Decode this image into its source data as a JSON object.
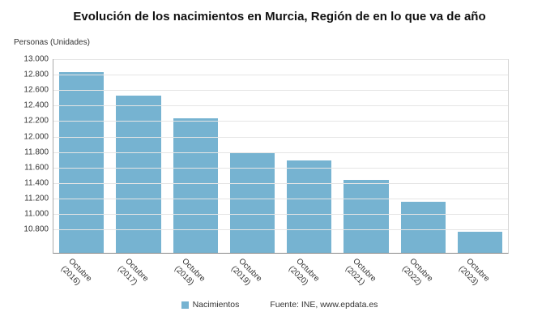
{
  "title": "Evolución de los nacimientos en Murcia, Región de en lo que va de año",
  "y_axis_unit": "Personas (Unidades)",
  "legend": {
    "label": "Nacimientos",
    "color": "#76b3d1"
  },
  "source": "Fuente: INE, www.epdata.es",
  "chart_data": {
    "type": "bar",
    "title": "Evolución de los nacimientos en Murcia, Región de en lo que va de año",
    "xlabel": "",
    "ylabel": "Personas (Unidades)",
    "categories": [
      "Octubre (2016)",
      "Octubre (2017)",
      "Octubre (2018)",
      "Octubre (2019)",
      "Octubre (2020)",
      "Octubre (2021)",
      "Octubre (2022)",
      "Octubre (2023)"
    ],
    "category_lines": [
      [
        "Octubre",
        "(2016)"
      ],
      [
        "Octubre",
        "(2017)"
      ],
      [
        "Octubre",
        "(2018)"
      ],
      [
        "Octubre",
        "(2019)"
      ],
      [
        "Octubre",
        "(2020)"
      ],
      [
        "Octubre",
        "(2021)"
      ],
      [
        "Octubre",
        "(2022)"
      ],
      [
        "Octubre",
        "(2023)"
      ]
    ],
    "series": [
      {
        "name": "Nacimientos",
        "values": [
          12830,
          12530,
          12240,
          11790,
          11690,
          11440,
          11160,
          10770
        ]
      }
    ],
    "values": [
      12830,
      12530,
      12240,
      11790,
      11690,
      11440,
      11160,
      10770
    ],
    "ylim": [
      10500,
      13000
    ],
    "yticks": [
      13000,
      12800,
      12600,
      12400,
      12200,
      12000,
      11800,
      11600,
      11400,
      11200,
      11000,
      10800
    ],
    "ytick_labels": [
      "13.000",
      "12.800",
      "12.600",
      "12.400",
      "12.200",
      "12.000",
      "11.800",
      "11.600",
      "11.400",
      "11.200",
      "11.000",
      "10.800"
    ],
    "bar_color": "#76b3d1",
    "grid": true,
    "legend_position": "bottom"
  }
}
